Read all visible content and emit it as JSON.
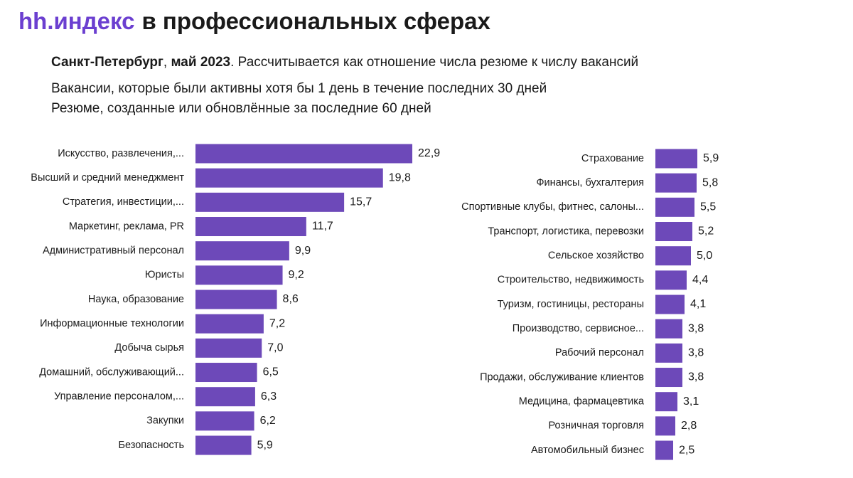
{
  "title_brand": "hh.индекс",
  "title": "в профессиональных сферах",
  "subtitle_parts": [
    "Санкт-Петербург",
    ", ",
    "май 2023",
    ". Рассчитывается как отношение числа резюме к числу вакансий"
  ],
  "notes": [
    "Вакансии, которые были активны хотя бы 1 день в течение последних 30 дней",
    "Резюме, созданные или обновлённые за последние 60 дней"
  ],
  "chart_data": [
    {
      "type": "bar",
      "orientation": "horizontal",
      "color": "#6d49b9",
      "categories": [
        "Искусство, развлечения,...",
        "Высший и средний менеджмент",
        "Стратегия, инвестиции,...",
        "Маркетинг, реклама, PR",
        "Административный персонал",
        "Юристы",
        "Наука, образование",
        "Информационные технологии",
        "Добыча сырья",
        "Домашний, обслуживающий...",
        "Управление персоналом,...",
        "Закупки",
        "Безопасность"
      ],
      "values": [
        22.9,
        19.8,
        15.7,
        11.7,
        9.9,
        9.2,
        8.6,
        7.2,
        7.0,
        6.5,
        6.3,
        6.2,
        5.9
      ],
      "value_labels": [
        "22,9",
        "19,8",
        "15,7",
        "11,7",
        "9,9",
        "9,2",
        "8,6",
        "7,2",
        "7,0",
        "6,5",
        "6,3",
        "6,2",
        "5,9"
      ]
    },
    {
      "type": "bar",
      "orientation": "horizontal",
      "color": "#6d49b9",
      "categories": [
        "Страхование",
        "Финансы, бухгалтерия",
        "Спортивные клубы, фитнес, салоны...",
        "Транспорт, логистика, перевозки",
        "Сельское хозяйство",
        "Строительство, недвижимость",
        "Туризм, гостиницы, рестораны",
        "Производство, сервисное...",
        "Рабочий персонал",
        "Продажи, обслуживание клиентов",
        "Медицина, фармацевтика",
        "Розничная торговля",
        "Автомобильный бизнес"
      ],
      "values": [
        5.9,
        5.8,
        5.5,
        5.2,
        5.0,
        4.4,
        4.1,
        3.8,
        3.8,
        3.8,
        3.1,
        2.8,
        2.5
      ],
      "value_labels": [
        "5,9",
        "5,8",
        "5,5",
        "5,2",
        "5,0",
        "4,4",
        "4,1",
        "3,8",
        "3,8",
        "3,8",
        "3,1",
        "2,8",
        "2,5"
      ]
    }
  ]
}
